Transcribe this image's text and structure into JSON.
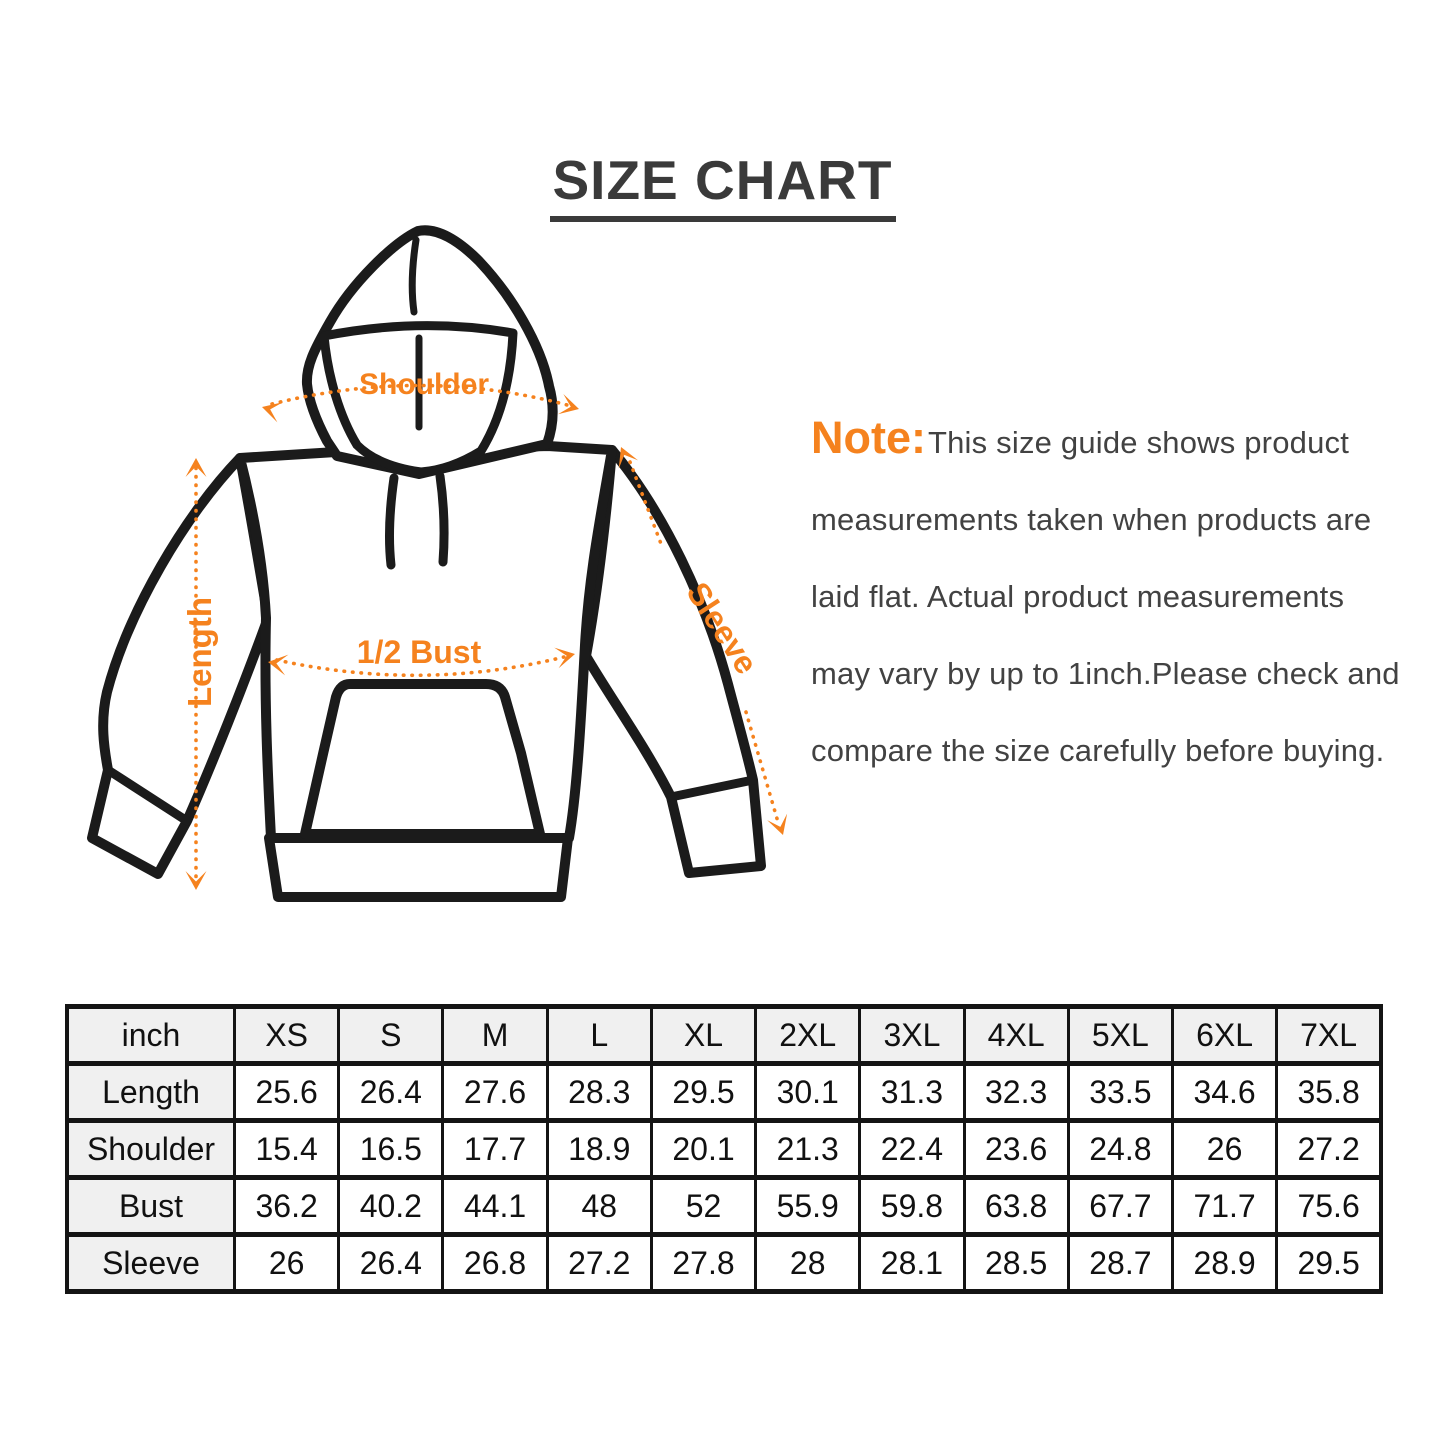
{
  "title": "SIZE CHART",
  "note": {
    "label": "Note:",
    "lines": [
      "This size guide shows product",
      "measurements taken when products are",
      "laid flat. Actual product measurements",
      "may vary by up to 1inch.Please check and",
      "compare the size carefully before buying."
    ]
  },
  "diagram": {
    "labels": {
      "shoulder": "Shoulder",
      "length": "Length",
      "half_bust": "1/2 Bust",
      "sleeve": "Sleeve"
    }
  },
  "colors": {
    "accent_orange": "#f5821e",
    "outline_black": "#1b1b1b",
    "title_gray": "#3a3a3a",
    "note_text_gray": "#424242",
    "table_header_bg": "#f0f0f0",
    "table_border": "#141414"
  },
  "table": {
    "unit_header": "inch",
    "size_columns": [
      "XS",
      "S",
      "M",
      "L",
      "XL",
      "2XL",
      "3XL",
      "4XL",
      "5XL",
      "6XL",
      "7XL"
    ],
    "rows": [
      {
        "label": "Length",
        "values": [
          "25.6",
          "26.4",
          "27.6",
          "28.3",
          "29.5",
          "30.1",
          "31.3",
          "32.3",
          "33.5",
          "34.6",
          "35.8"
        ]
      },
      {
        "label": "Shoulder",
        "values": [
          "15.4",
          "16.5",
          "17.7",
          "18.9",
          "20.1",
          "21.3",
          "22.4",
          "23.6",
          "24.8",
          "26",
          "27.2"
        ]
      },
      {
        "label": "Bust",
        "values": [
          "36.2",
          "40.2",
          "44.1",
          "48",
          "52",
          "55.9",
          "59.8",
          "63.8",
          "67.7",
          "71.7",
          "75.6"
        ]
      },
      {
        "label": "Sleeve",
        "values": [
          "26",
          "26.4",
          "26.8",
          "27.2",
          "27.8",
          "28",
          "28.1",
          "28.5",
          "28.7",
          "28.9",
          "29.5"
        ]
      }
    ]
  }
}
